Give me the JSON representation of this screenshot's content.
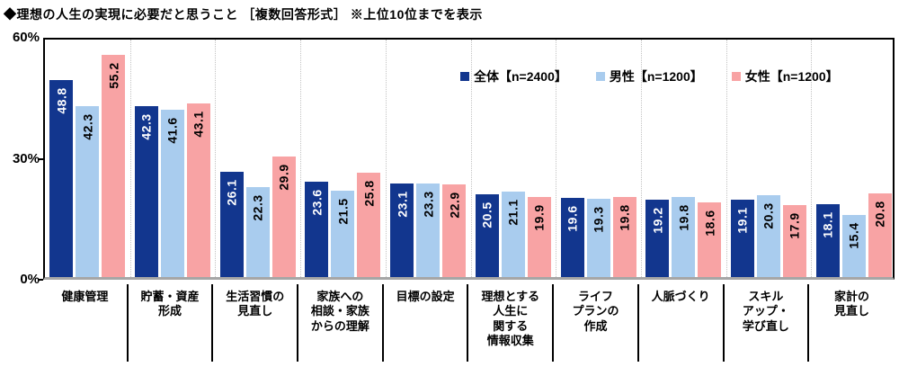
{
  "chart_data": {
    "type": "bar",
    "title": "◆理想の人生の実現に必要だと思うこと ［複数回答形式］ ※上位10位までを表示",
    "xlabel": "",
    "ylabel": "",
    "ylim": [
      0,
      60
    ],
    "yticks": [
      "60%",
      "30%",
      "0%"
    ],
    "grid": "vertical dotted separators between categories",
    "legend_position": "inside top-right",
    "axis_color": "#000000",
    "baseline_color": "#a6a6a6",
    "categories": [
      "健康管理",
      "貯蓄・資産\n形成",
      "生活習慣の\n見直し",
      "家族への\n相談・家族\nからの理解",
      "目標の設定",
      "理想とする\n人生に\n関する\n情報収集",
      "ライフ\nプランの\n作成",
      "人脈づくり",
      "スキル\nアップ・\n学び直し",
      "家計の\n見直し"
    ],
    "series": [
      {
        "name": "全体【n=2400】",
        "color": "#12368e",
        "label_color": "#ffffff",
        "values": [
          48.8,
          42.3,
          26.1,
          23.6,
          23.1,
          20.5,
          19.6,
          19.2,
          19.1,
          18.1
        ]
      },
      {
        "name": "男性【n=1200】",
        "color": "#a9ccee",
        "label_color": "#000000",
        "values": [
          42.3,
          41.6,
          22.3,
          21.5,
          23.3,
          21.1,
          19.3,
          19.8,
          20.3,
          15.4
        ]
      },
      {
        "name": "女性【n=1200】",
        "color": "#f8a3a4",
        "label_color": "#000000",
        "values": [
          55.2,
          43.1,
          29.9,
          25.8,
          22.9,
          19.9,
          19.8,
          18.6,
          17.9,
          20.8
        ]
      }
    ]
  }
}
